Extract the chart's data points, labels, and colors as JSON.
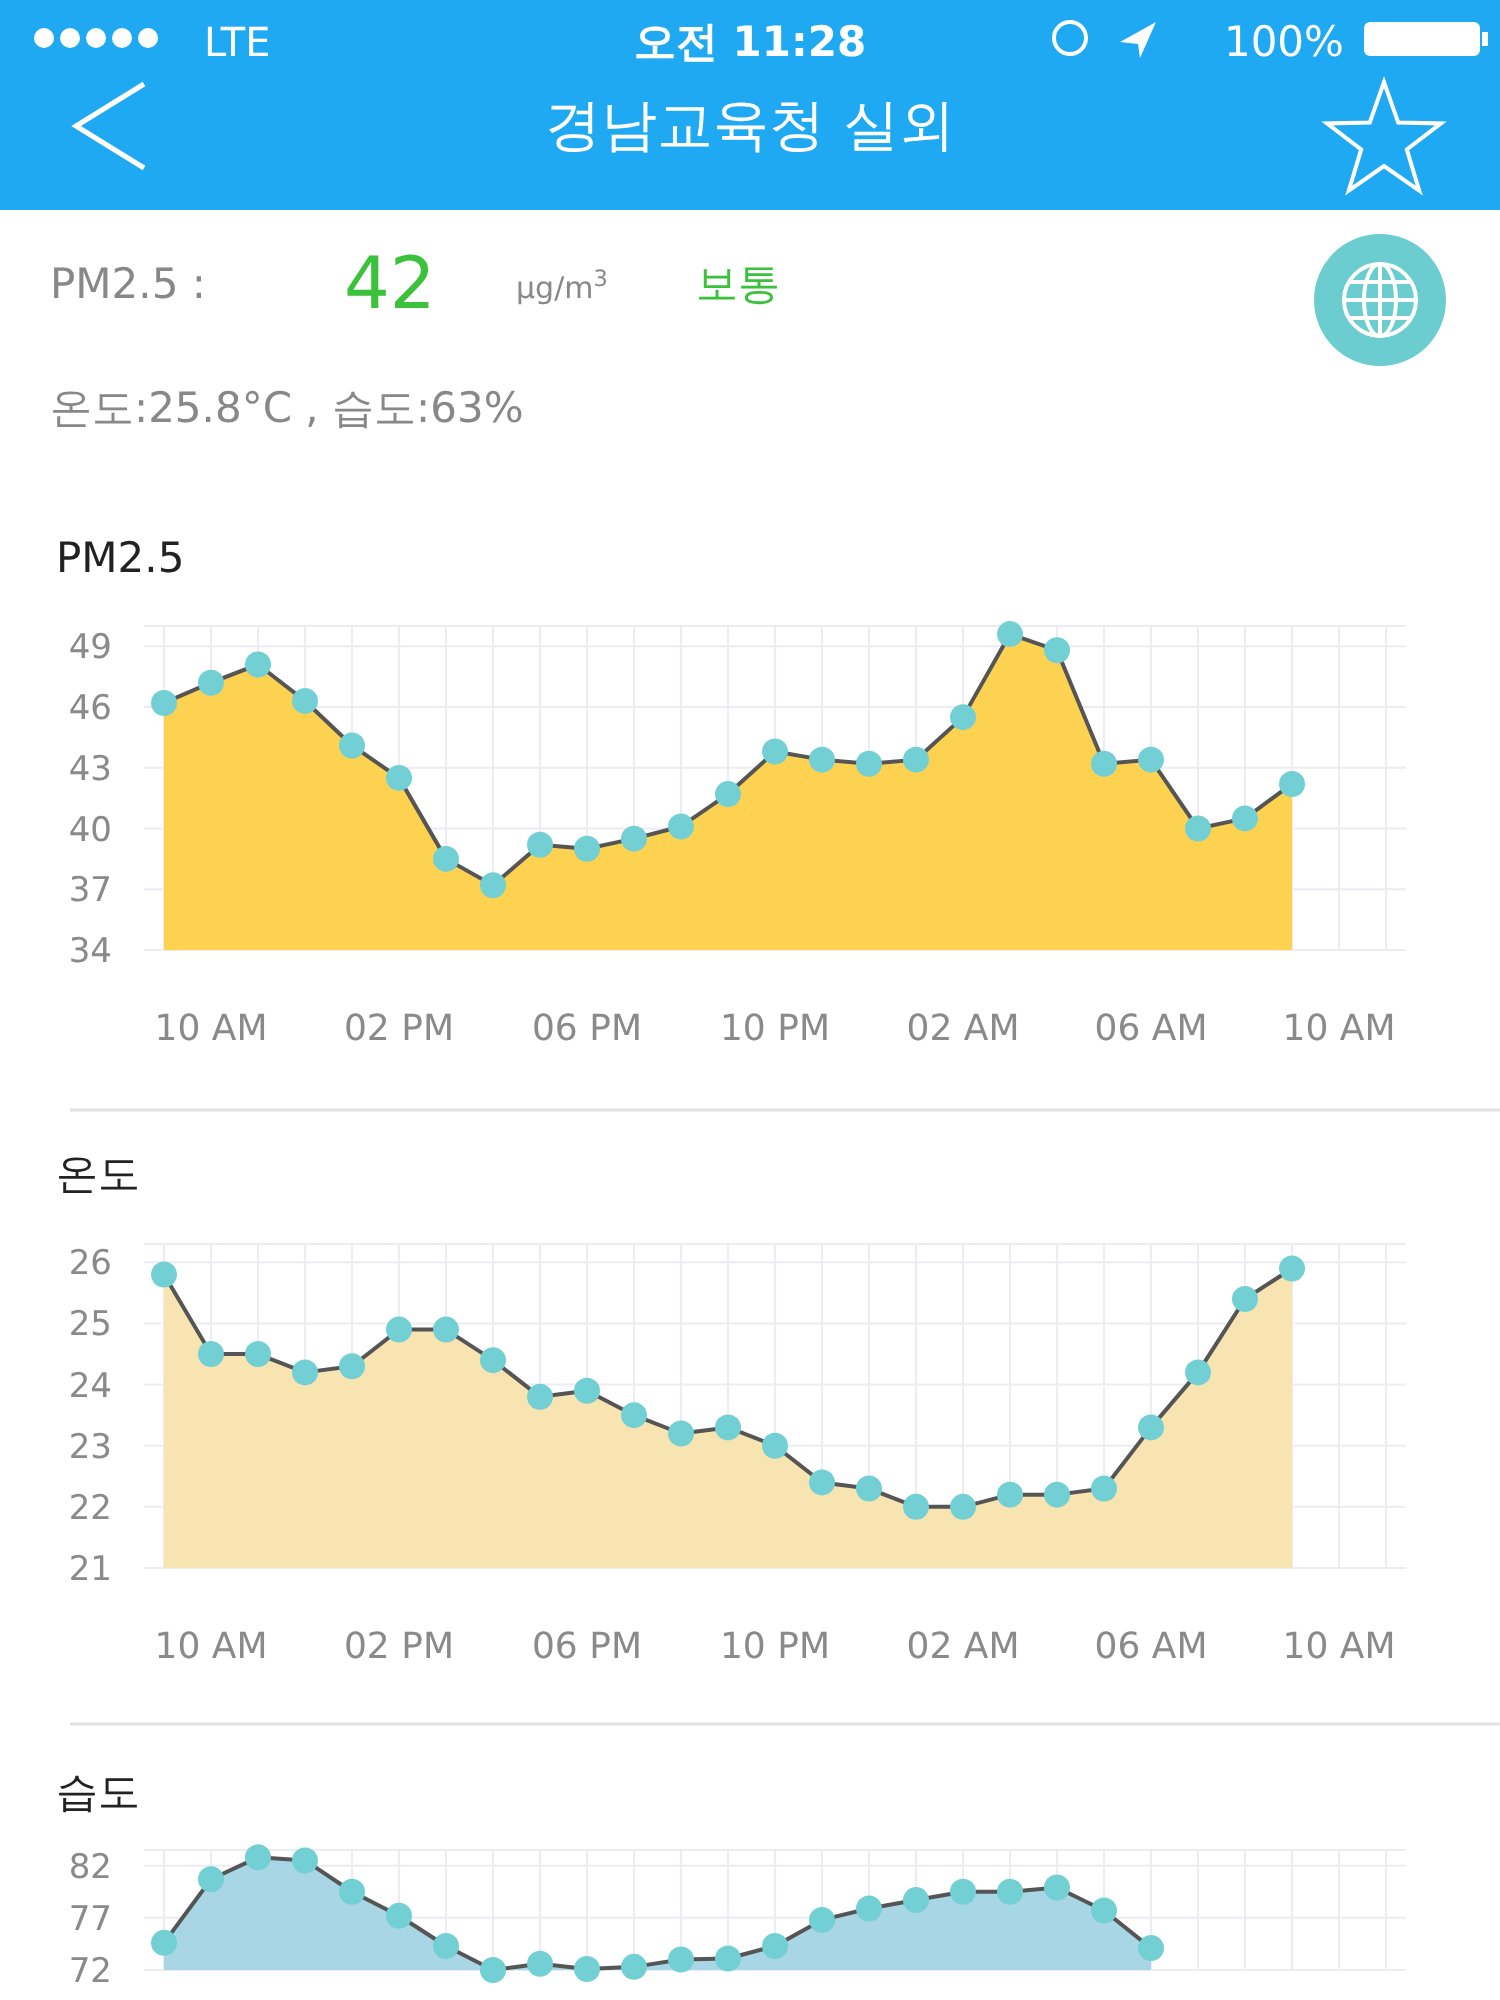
{
  "chart_data": [
    {
      "type": "other",
      "title": "경남교육청 실외",
      "annotations": [
        "LTE",
        "오전 11:28",
        "100%",
        "PM2.5 :",
        "42",
        "μg/m$^{3}$",
        "보통",
        "온도:25.8°C , 습도:63%"
      ]
    },
    {
      "type": "area",
      "title": "PM2.5",
      "categories": [
        null,
        "10 AM",
        null,
        null,
        null,
        "02 PM",
        null,
        null,
        null,
        "06 PM",
        null,
        null,
        null,
        "10 PM",
        null,
        null,
        null,
        "02 AM",
        null,
        null,
        null,
        "06 AM",
        null,
        null,
        null,
        "10 AM",
        null
      ],
      "series": [
        {
          "color": "#fdd250",
          "values": [
            46.2,
            47.2,
            48.1,
            46.3,
            44.1,
            42.5,
            38.5,
            37.2,
            39.2,
            39.0,
            39.5,
            40.1,
            41.7,
            43.8,
            43.4,
            43.2,
            43.4,
            45.5,
            49.6,
            48.8,
            43.2,
            43.4,
            40.0,
            40.5,
            42.2,
            null,
            null
          ]
        }
      ],
      "ylim": [
        34,
        50
      ],
      "yticks": [
        34,
        37,
        40,
        43,
        46,
        49
      ],
      "grid": true,
      "marker": "circle"
    },
    {
      "type": "area",
      "title": "온도",
      "categories": [
        null,
        "10 AM",
        null,
        null,
        null,
        "02 PM",
        null,
        null,
        null,
        "06 PM",
        null,
        null,
        null,
        "10 PM",
        null,
        null,
        null,
        "02 AM",
        null,
        null,
        null,
        "06 AM",
        null,
        null,
        null,
        "10 AM",
        null
      ],
      "series": [
        {
          "color": "#f8e4b0",
          "values": [
            25.8,
            24.5,
            24.5,
            24.2,
            24.3,
            24.9,
            24.9,
            24.4,
            23.8,
            23.9,
            23.5,
            23.2,
            23.3,
            23.0,
            22.4,
            22.3,
            22.0,
            22.0,
            22.2,
            22.2,
            22.3,
            23.3,
            24.2,
            25.4,
            25.9,
            null,
            null
          ]
        }
      ],
      "ylim": [
        21,
        26.3
      ],
      "yticks": [
        21,
        22,
        23,
        24,
        25,
        26
      ],
      "grid": true,
      "marker": "circle"
    },
    {
      "type": "area",
      "title": "습도",
      "categories": [
        null,
        null,
        null,
        null,
        null,
        null,
        null,
        null,
        null,
        null,
        null,
        null,
        null,
        null,
        null,
        null,
        null,
        null,
        null,
        null,
        null,
        null,
        null,
        null,
        null,
        null,
        null
      ],
      "series": [
        {
          "color": "#a9d6e5",
          "values": [
            74.6,
            80.7,
            82.8,
            82.5,
            79.5,
            77.2,
            74.3,
            72.0,
            72.6,
            72.1,
            72.3,
            73.0,
            73.1,
            74.3,
            76.8,
            77.9,
            78.7,
            79.5,
            79.5,
            79.9,
            77.7,
            74.1,
            null,
            null,
            null,
            null,
            null
          ]
        }
      ],
      "ylim": [
        72,
        83.5
      ],
      "yticks": [
        72,
        77,
        82
      ],
      "grid": true,
      "marker": "circle"
    }
  ]
}
